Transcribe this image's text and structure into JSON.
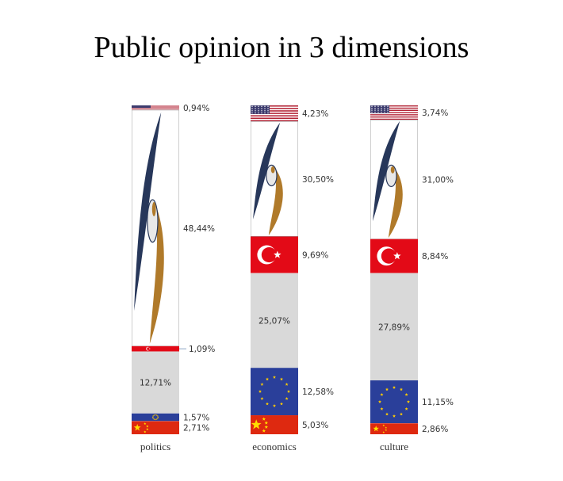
{
  "chart_data": {
    "type": "bar",
    "stacked": true,
    "title": "Public opinion in 3 dimensions",
    "categories": [
      "politics",
      "economics",
      "culture"
    ],
    "series": [
      {
        "segment": "usa",
        "values": [
          0.94,
          4.23,
          3.74
        ],
        "labels": [
          "0,94%",
          "4,23%",
          "3,74%"
        ]
      },
      {
        "segment": "eurasian-union",
        "values": [
          48.44,
          30.5,
          31.0
        ],
        "labels": [
          "48,44%",
          "30,50%",
          "31,00%"
        ]
      },
      {
        "segment": "turkey",
        "values": [
          1.09,
          9.69,
          8.84
        ],
        "labels": [
          "1,09%",
          "9,69%",
          "8,84%"
        ]
      },
      {
        "segment": "neutral",
        "values": [
          12.71,
          25.07,
          27.89
        ],
        "labels": [
          "12,71%",
          "25,07%",
          "27,89%"
        ]
      },
      {
        "segment": "eu",
        "values": [
          1.57,
          12.58,
          11.15
        ],
        "labels": [
          "1,57%",
          "12,58%",
          "11,15%"
        ]
      },
      {
        "segment": "china",
        "values": [
          2.71,
          5.03,
          2.86
        ],
        "labels": [
          "2,71%",
          "5,03%",
          "2,86%"
        ]
      }
    ],
    "segment_icons": {
      "usa": "us-flag-icon",
      "eurasian-union": "eurasian-emblem-icon",
      "turkey": "turkey-flag-icon",
      "neutral": "",
      "eu": "eu-flag-icon",
      "china": "china-flag-icon"
    },
    "colors": {
      "neutral": "#d9d9d9",
      "us_red": "#b22234",
      "us_blue": "#3c3b6e",
      "tr_red": "#e30a17",
      "eu_blue": "#2a3f9a",
      "eu_star": "#ffcc00",
      "cn_red": "#de2910",
      "cn_star": "#ffde00",
      "emblem_navy": "#27375a",
      "emblem_gold": "#b07a2a"
    },
    "grid": false,
    "legend": "none"
  }
}
